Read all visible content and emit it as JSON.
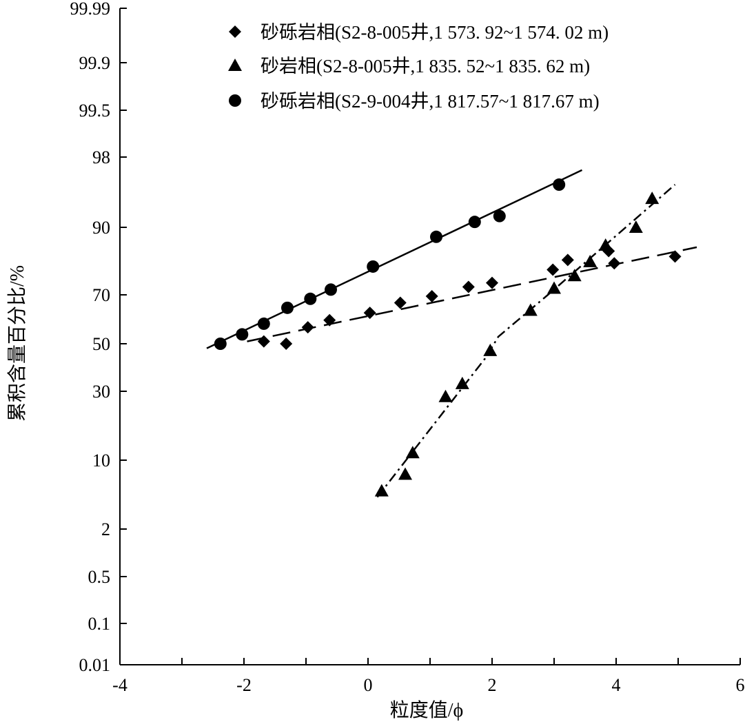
{
  "chart_data": {
    "type": "scatter",
    "x_axis": {
      "label": "粒度值/ϕ",
      "ticks": [
        -4,
        -2,
        0,
        2,
        4,
        6
      ],
      "range": [
        -4,
        6
      ]
    },
    "y_axis": {
      "label": "累积含量百分比/%",
      "scale": "probability",
      "ticks": [
        "99.99",
        "99.9",
        "99.5",
        "98",
        "90",
        "70",
        "50",
        "30",
        "10",
        "2",
        "0.5",
        "0.1",
        "0.01"
      ]
    },
    "grid": false,
    "legend_position": "top-right",
    "series": [
      {
        "name": "砂砾岩相(S2-8-005井,1 573. 92~1 574. 02 m)",
        "marker": "diamond",
        "line_style": "dashed",
        "points": [
          {
            "x": -1.68,
            "y": 51
          },
          {
            "x": -1.32,
            "y": 50
          },
          {
            "x": -0.97,
            "y": 57
          },
          {
            "x": -0.62,
            "y": 60
          },
          {
            "x": 0.03,
            "y": 63
          },
          {
            "x": 0.52,
            "y": 67
          },
          {
            "x": 1.03,
            "y": 69.5
          },
          {
            "x": 1.62,
            "y": 73
          },
          {
            "x": 2.0,
            "y": 74.5
          },
          {
            "x": 2.98,
            "y": 79
          },
          {
            "x": 3.22,
            "y": 82
          },
          {
            "x": 3.88,
            "y": 84.5
          },
          {
            "x": 3.97,
            "y": 81
          },
          {
            "x": 4.95,
            "y": 83
          }
        ],
        "fit": [
          {
            "x": -1.95,
            "y": 51
          },
          {
            "x": 5.3,
            "y": 85.5
          }
        ]
      },
      {
        "name": "砂岩相(S2-8-005井,1 835. 52~1 835. 62 m)",
        "marker": "triangle",
        "line_style": "dash-dot",
        "points": [
          {
            "x": 0.22,
            "y": 5.2
          },
          {
            "x": 0.72,
            "y": 11.5
          },
          {
            "x": 0.6,
            "y": 7.5
          },
          {
            "x": 1.25,
            "y": 28
          },
          {
            "x": 1.52,
            "y": 33
          },
          {
            "x": 1.97,
            "y": 47
          },
          {
            "x": 2.62,
            "y": 64
          },
          {
            "x": 3.0,
            "y": 72.5
          },
          {
            "x": 3.33,
            "y": 77
          },
          {
            "x": 3.58,
            "y": 81.5
          },
          {
            "x": 3.83,
            "y": 86
          },
          {
            "x": 4.32,
            "y": 90
          },
          {
            "x": 4.58,
            "y": 94.5
          }
        ],
        "fit": [
          {
            "x": 0.15,
            "y": 4.5
          },
          {
            "x": 1.9,
            "y": 44
          },
          {
            "x": 2.1,
            "y": 53
          },
          {
            "x": 2.9,
            "y": 70
          },
          {
            "x": 4.95,
            "y": 96
          }
        ]
      },
      {
        "name": "砂砾岩相(S2-9-004井,1 817.57~1 817.67 m)",
        "marker": "circle",
        "line_style": "solid",
        "points": [
          {
            "x": -2.38,
            "y": 50
          },
          {
            "x": -2.03,
            "y": 54
          },
          {
            "x": -1.68,
            "y": 58.5
          },
          {
            "x": -1.3,
            "y": 65
          },
          {
            "x": -0.93,
            "y": 68.5
          },
          {
            "x": -0.6,
            "y": 72
          },
          {
            "x": 0.08,
            "y": 80
          },
          {
            "x": 1.1,
            "y": 88
          },
          {
            "x": 1.72,
            "y": 91
          },
          {
            "x": 2.12,
            "y": 92
          },
          {
            "x": 3.08,
            "y": 96
          }
        ],
        "fit": [
          {
            "x": -2.6,
            "y": 48
          },
          {
            "x": 3.45,
            "y": 97.2
          }
        ]
      }
    ]
  }
}
